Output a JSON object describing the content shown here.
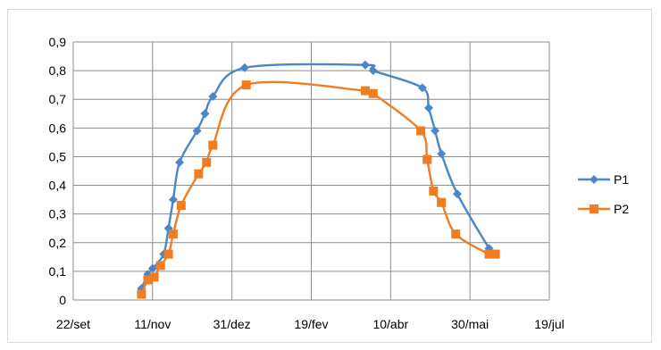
{
  "chart_data": {
    "type": "line",
    "title": "",
    "xlabel": "",
    "ylabel": "",
    "x_tick_labels": [
      "22/set",
      "11/nov",
      "31/dez",
      "19/fev",
      "10/abr",
      "30/mai",
      "19/jul"
    ],
    "y_tick_labels": [
      "0",
      "0,1",
      "0,2",
      "0,3",
      "0,4",
      "0,5",
      "0,6",
      "0,7",
      "0,8",
      "0,9"
    ],
    "ylim": [
      0,
      0.9
    ],
    "xlim": [
      "2020-09-22",
      "2021-07-19"
    ],
    "grid": true,
    "legend_position": "right",
    "series": [
      {
        "name": "P1",
        "color": "#4a86c8",
        "marker": "diamond",
        "points": [
          {
            "x": "2020-11-04",
            "y": 0.04
          },
          {
            "x": "2020-11-08",
            "y": 0.09
          },
          {
            "x": "2020-11-11",
            "y": 0.11
          },
          {
            "x": "2020-11-18",
            "y": 0.16
          },
          {
            "x": "2020-11-21",
            "y": 0.25
          },
          {
            "x": "2020-11-24",
            "y": 0.35
          },
          {
            "x": "2020-11-28",
            "y": 0.48
          },
          {
            "x": "2020-12-09",
            "y": 0.59
          },
          {
            "x": "2020-12-14",
            "y": 0.65
          },
          {
            "x": "2020-12-19",
            "y": 0.71
          },
          {
            "x": "2021-01-08",
            "y": 0.81
          },
          {
            "x": "2021-03-25",
            "y": 0.82
          },
          {
            "x": "2021-03-30",
            "y": 0.8
          },
          {
            "x": "2021-04-30",
            "y": 0.74
          },
          {
            "x": "2021-05-04",
            "y": 0.67
          },
          {
            "x": "2021-05-08",
            "y": 0.59
          },
          {
            "x": "2021-05-12",
            "y": 0.51
          },
          {
            "x": "2021-05-22",
            "y": 0.37
          },
          {
            "x": "2021-06-11",
            "y": 0.18
          },
          {
            "x": "2021-06-14",
            "y": 0.16
          }
        ]
      },
      {
        "name": "P2",
        "color": "#f07d22",
        "marker": "square",
        "points": [
          {
            "x": "2020-11-04",
            "y": 0.02
          },
          {
            "x": "2020-11-08",
            "y": 0.07
          },
          {
            "x": "2020-11-12",
            "y": 0.08
          },
          {
            "x": "2020-11-16",
            "y": 0.12
          },
          {
            "x": "2020-11-21",
            "y": 0.16
          },
          {
            "x": "2020-11-24",
            "y": 0.23
          },
          {
            "x": "2020-11-29",
            "y": 0.33
          },
          {
            "x": "2020-12-10",
            "y": 0.44
          },
          {
            "x": "2020-12-15",
            "y": 0.48
          },
          {
            "x": "2020-12-19",
            "y": 0.54
          },
          {
            "x": "2021-01-09",
            "y": 0.75
          },
          {
            "x": "2021-03-25",
            "y": 0.73
          },
          {
            "x": "2021-03-30",
            "y": 0.72
          },
          {
            "x": "2021-04-29",
            "y": 0.59
          },
          {
            "x": "2021-05-03",
            "y": 0.49
          },
          {
            "x": "2021-05-07",
            "y": 0.38
          },
          {
            "x": "2021-05-12",
            "y": 0.34
          },
          {
            "x": "2021-05-21",
            "y": 0.23
          },
          {
            "x": "2021-06-11",
            "y": 0.16
          },
          {
            "x": "2021-06-15",
            "y": 0.16
          }
        ]
      }
    ]
  }
}
